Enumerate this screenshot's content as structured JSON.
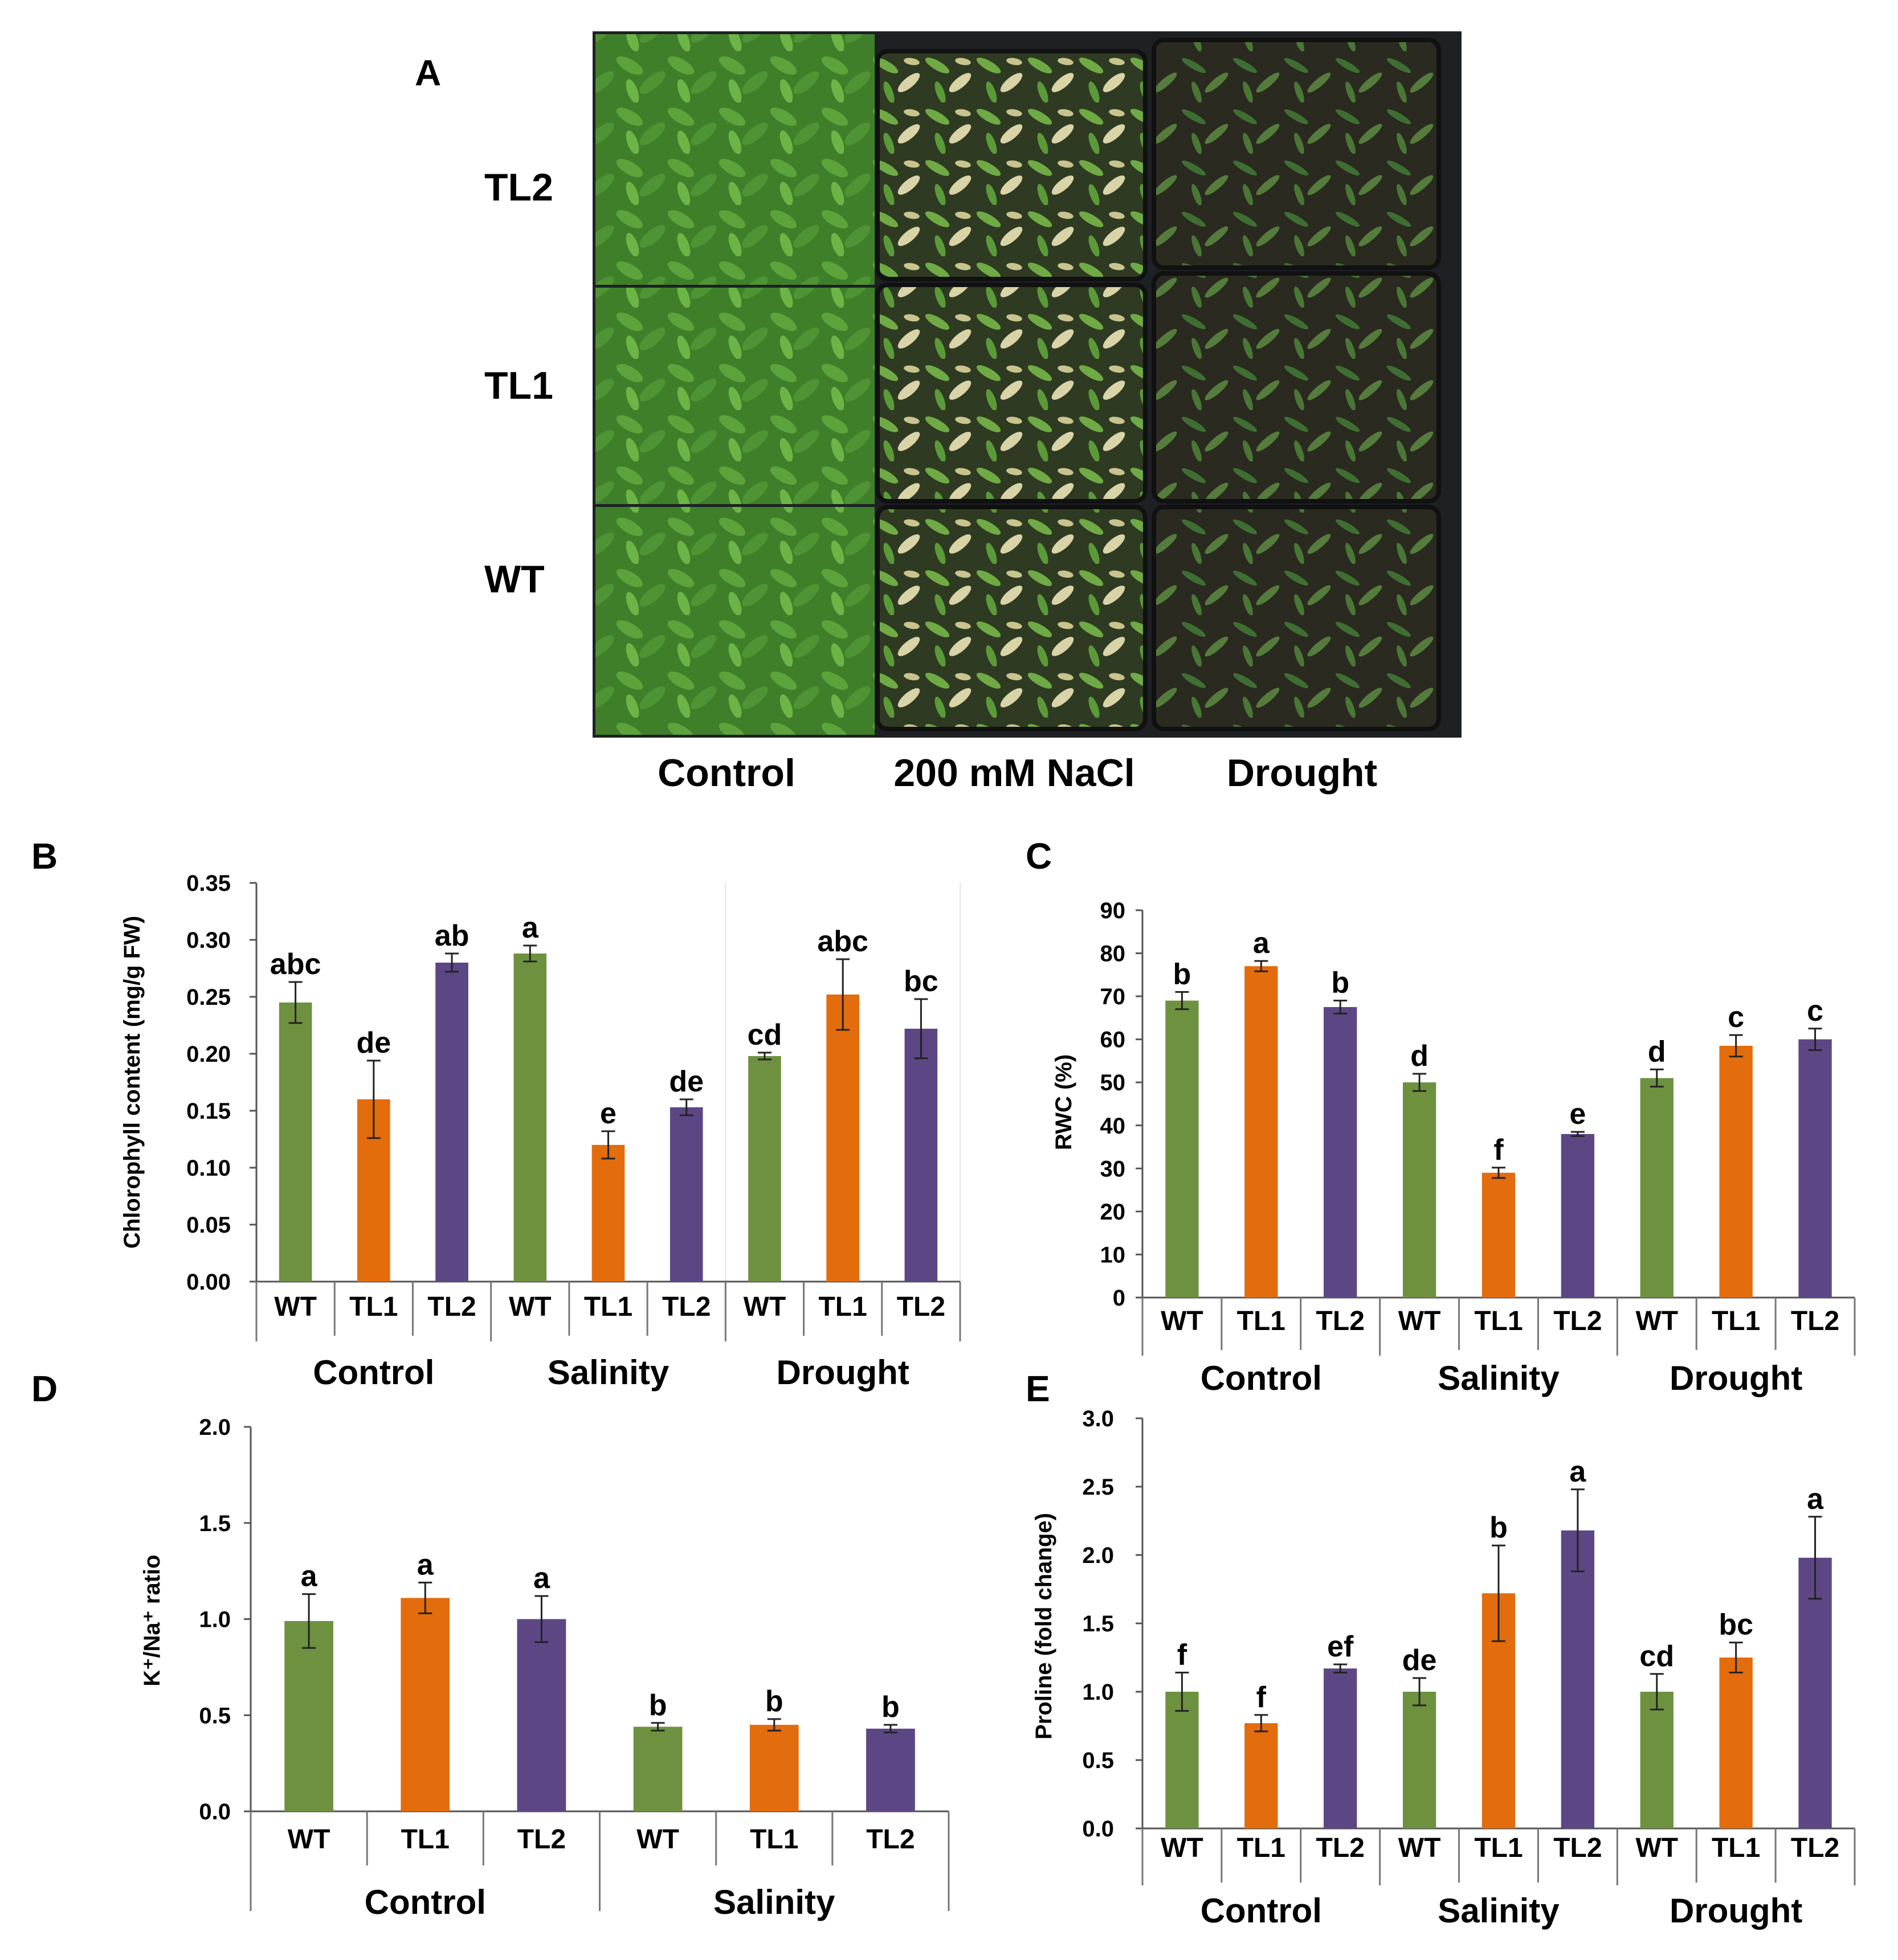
{
  "panel_a": {
    "letter": "A",
    "row_labels": [
      "TL2",
      "TL1",
      "WT"
    ],
    "column_labels": [
      "Control",
      "200 mM NaCl",
      "Drought"
    ]
  },
  "colors": {
    "WT": "#6e9140",
    "TL1": "#e36c0d",
    "TL2": "#5c4784"
  },
  "chart_data": [
    {
      "panel": "B",
      "type": "bar",
      "ylabel": "Chlorophyll content (mg/g FW)",
      "ylim": [
        0,
        0.35
      ],
      "yticks": [
        "0.00",
        "0.05",
        "0.10",
        "0.15",
        "0.20",
        "0.25",
        "0.30",
        "0.35"
      ],
      "groups": [
        "Control",
        "Salinity",
        "Drought"
      ],
      "categories": [
        "WT",
        "TL1",
        "TL2",
        "WT",
        "TL1",
        "TL2",
        "WT",
        "TL1",
        "TL2"
      ],
      "values": [
        0.245,
        0.16,
        0.28,
        0.288,
        0.12,
        0.153,
        0.198,
        0.252,
        0.222
      ],
      "errors": [
        0.018,
        0.034,
        0.008,
        0.007,
        0.012,
        0.007,
        0.003,
        0.031,
        0.026
      ],
      "letters": [
        "abc",
        "de",
        "ab",
        "a",
        "e",
        "de",
        "cd",
        "abc",
        "bc"
      ]
    },
    {
      "panel": "C",
      "type": "bar",
      "ylabel": "RWC (%)",
      "ylim": [
        0,
        90
      ],
      "yticks": [
        "0",
        "10",
        "20",
        "30",
        "40",
        "50",
        "60",
        "70",
        "80",
        "90"
      ],
      "groups": [
        "Control",
        "Salinity",
        "Drought"
      ],
      "categories": [
        "WT",
        "TL1",
        "TL2",
        "WT",
        "TL1",
        "TL2",
        "WT",
        "TL1",
        "TL2"
      ],
      "values": [
        69,
        77,
        67.5,
        50,
        29,
        38,
        51,
        58.5,
        60
      ],
      "errors": [
        2,
        1.2,
        1.5,
        2,
        1.2,
        0.5,
        2,
        2.5,
        2.5
      ],
      "letters": [
        "b",
        "a",
        "b",
        "d",
        "f",
        "e",
        "d",
        "c",
        "c"
      ]
    },
    {
      "panel": "D",
      "type": "bar",
      "ylabel": "K⁺/Na⁺ ratio",
      "ylim": [
        0,
        2.0
      ],
      "yticks": [
        "0.0",
        "0.5",
        "1.0",
        "1.5",
        "2.0"
      ],
      "groups": [
        "Control",
        "Salinity"
      ],
      "categories": [
        "WT",
        "TL1",
        "TL2",
        "WT",
        "TL1",
        "TL2"
      ],
      "values": [
        0.99,
        1.11,
        1.0,
        0.44,
        0.45,
        0.43
      ],
      "errors": [
        0.14,
        0.08,
        0.12,
        0.02,
        0.03,
        0.02
      ],
      "letters": [
        "a",
        "a",
        "a",
        "b",
        "b",
        "b"
      ]
    },
    {
      "panel": "E",
      "type": "bar",
      "ylabel": "Proline (fold change)",
      "ylim": [
        0,
        3.0
      ],
      "yticks": [
        "0.0",
        "0.5",
        "1.0",
        "1.5",
        "2.0",
        "2.5",
        "3.0"
      ],
      "groups": [
        "Control",
        "Salinity",
        "Drought"
      ],
      "categories": [
        "WT",
        "TL1",
        "TL2",
        "WT",
        "TL1",
        "TL2",
        "WT",
        "TL1",
        "TL2"
      ],
      "values": [
        1.0,
        0.77,
        1.17,
        1.0,
        1.72,
        2.18,
        1.0,
        1.25,
        1.98
      ],
      "errors": [
        0.14,
        0.06,
        0.03,
        0.1,
        0.35,
        0.3,
        0.13,
        0.11,
        0.3
      ],
      "letters": [
        "f",
        "f",
        "ef",
        "de",
        "b",
        "a",
        "cd",
        "bc",
        "a"
      ]
    }
  ]
}
